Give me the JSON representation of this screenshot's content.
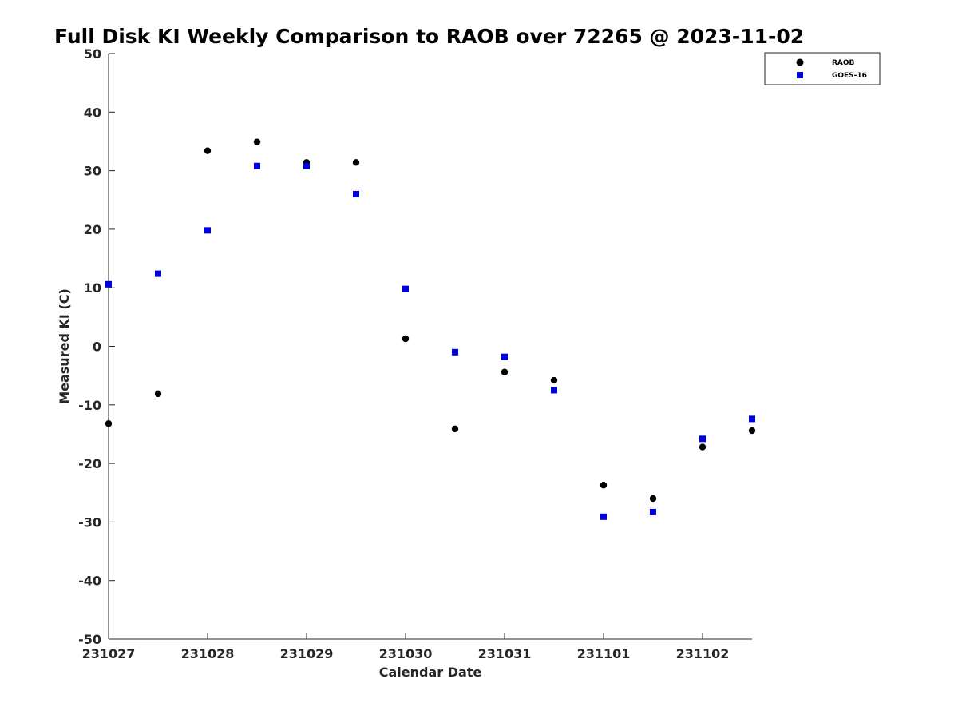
{
  "chart_data": {
    "type": "scatter",
    "title": "Full Disk KI Weekly Comparison to RAOB over 72265 @ 2023-11-02",
    "xlabel": "Calendar Date",
    "ylabel": "Measured KI (C)",
    "xlim": [
      0,
      6.5
    ],
    "ylim": [
      -50,
      50
    ],
    "xticks": [
      0,
      1,
      2,
      3,
      4,
      5,
      6
    ],
    "xtick_labels": [
      "231027",
      "231028",
      "231029",
      "231030",
      "231031",
      "231101",
      "231102"
    ],
    "yticks": [
      -50,
      -40,
      -30,
      -20,
      -10,
      0,
      10,
      20,
      30,
      40,
      50
    ],
    "ytick_labels": [
      "-50",
      "-40",
      "-30",
      "-20",
      "-10",
      "0",
      "10",
      "20",
      "30",
      "40",
      "50"
    ],
    "grid": false,
    "legend_position": "top-right",
    "series": [
      {
        "name": "RAOB",
        "marker": "circle",
        "color": "#000000",
        "x": [
          0,
          0.5,
          1,
          1.5,
          2,
          2.5,
          3,
          3.5,
          4,
          4.5,
          5,
          5.5,
          6,
          6.5
        ],
        "values": [
          -13.2,
          -8.1,
          33.4,
          34.9,
          31.4,
          31.4,
          1.3,
          -14.1,
          -4.4,
          -5.8,
          -23.7,
          -26.0,
          -17.2,
          -14.4
        ]
      },
      {
        "name": "GOES-16",
        "marker": "square",
        "color": "#0000dd",
        "x": [
          0,
          0.5,
          1,
          1.5,
          2,
          2.5,
          3,
          3.5,
          4,
          4.5,
          5,
          5.5,
          6,
          6.5
        ],
        "values": [
          10.6,
          12.4,
          19.8,
          30.8,
          30.8,
          26.0,
          9.8,
          -1.0,
          -1.8,
          -7.5,
          -29.1,
          -28.3,
          -15.8,
          -12.4
        ]
      }
    ]
  }
}
